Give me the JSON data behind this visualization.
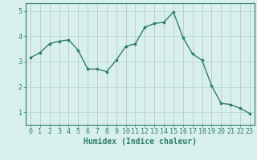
{
  "x": [
    0,
    1,
    2,
    3,
    4,
    5,
    6,
    7,
    8,
    9,
    10,
    11,
    12,
    13,
    14,
    15,
    16,
    17,
    18,
    19,
    20,
    21,
    22,
    23
  ],
  "y": [
    3.15,
    3.35,
    3.7,
    3.8,
    3.85,
    3.45,
    2.7,
    2.7,
    2.6,
    3.05,
    3.6,
    3.7,
    4.35,
    4.5,
    4.55,
    4.95,
    3.95,
    3.3,
    3.05,
    2.05,
    1.35,
    1.3,
    1.15,
    0.95
  ],
  "line_color": "#2e7d6e",
  "marker": "o",
  "marker_size": 2.2,
  "linewidth": 1.0,
  "xlabel": "Humidex (Indice chaleur)",
  "xlim": [
    -0.5,
    23.5
  ],
  "ylim": [
    0.5,
    5.3
  ],
  "yticks": [
    1,
    2,
    3,
    4,
    5
  ],
  "xticks": [
    0,
    1,
    2,
    3,
    4,
    5,
    6,
    7,
    8,
    9,
    10,
    11,
    12,
    13,
    14,
    15,
    16,
    17,
    18,
    19,
    20,
    21,
    22,
    23
  ],
  "grid_color": "#aed4cc",
  "bg_color": "#d8f0ec",
  "tick_color": "#2e7d6e",
  "label_color": "#2e7d6e",
  "xlabel_fontsize": 7,
  "tick_fontsize": 6,
  "ylabel_fontsize": 6
}
